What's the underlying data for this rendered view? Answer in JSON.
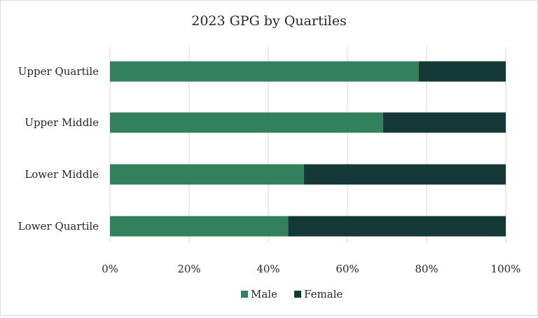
{
  "chart_data": {
    "type": "bar",
    "orientation": "horizontal",
    "stacked": true,
    "percent_stacked": true,
    "title": "2023 GPG by Quartiles",
    "categories": [
      "Upper Quartile",
      "Upper Middle",
      "Lower Middle",
      "Lower Quartile"
    ],
    "series": [
      {
        "name": "Male",
        "color": "#33805c",
        "values": [
          78,
          69,
          49,
          45
        ]
      },
      {
        "name": "Female",
        "color": "#143836",
        "values": [
          22,
          31,
          51,
          55
        ]
      }
    ],
    "xlim": [
      0,
      100
    ],
    "xticks": [
      "0%",
      "20%",
      "40%",
      "60%",
      "80%",
      "100%"
    ],
    "grid": true,
    "legend_position": "bottom"
  }
}
